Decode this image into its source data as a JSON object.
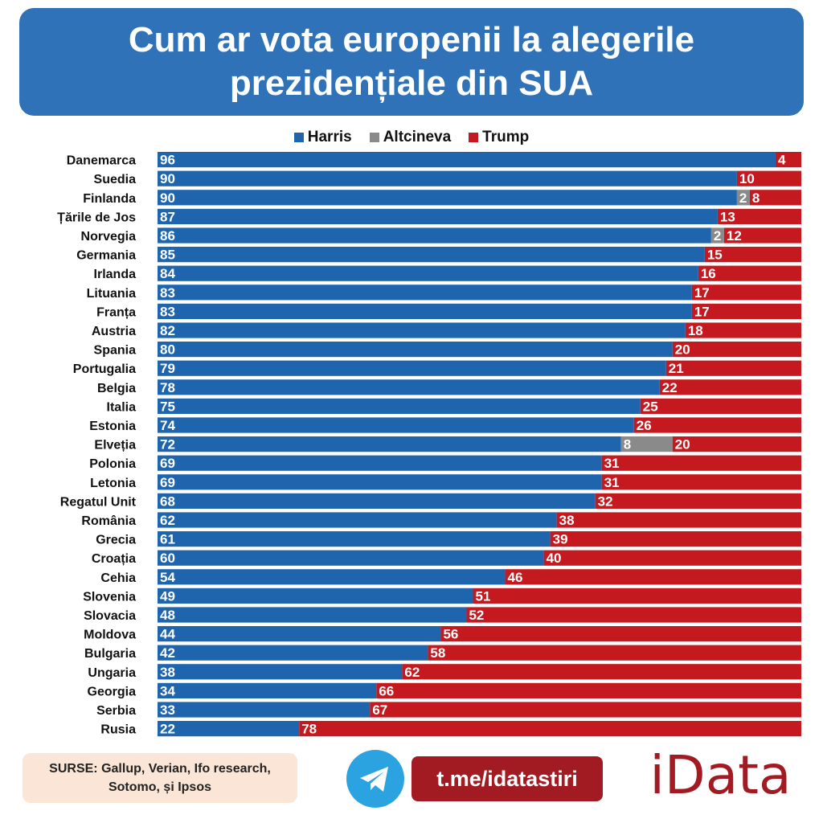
{
  "title": {
    "line1": "Cum ar vota europenii la alegerile",
    "line2": "prezidențiale din SUA"
  },
  "colors": {
    "title_bg": "#2f72b8",
    "harris": "#1f65ae",
    "other": "#8a8a8a",
    "trump": "#c41a1f",
    "link_bg": "#a21a22",
    "sources_bg": "#fbe5d6",
    "telegram": "#2ba3e0"
  },
  "legend": [
    {
      "label": "Harris",
      "color": "#1f65ae"
    },
    {
      "label": "Altcineva",
      "color": "#8a8a8a"
    },
    {
      "label": "Trump",
      "color": "#c41a1f"
    }
  ],
  "chart_data": {
    "type": "bar",
    "orientation": "horizontal",
    "stacked": true,
    "title": "Cum ar vota europenii la alegerile prezidențiale din SUA",
    "xlim": [
      0,
      100
    ],
    "grid": false,
    "legend_position": "top",
    "categories": [
      "Danemarca",
      "Suedia",
      "Finlanda",
      "Țările de Jos",
      "Norvegia",
      "Germania",
      "Irlanda",
      "Lituania",
      "Franța",
      "Austria",
      "Spania",
      "Portugalia",
      "Belgia",
      "Italia",
      "Estonia",
      "Elveția",
      "Polonia",
      "Letonia",
      "Regatul Unit",
      "România",
      "Grecia",
      "Croația",
      "Cehia",
      "Slovenia",
      "Slovacia",
      "Moldova",
      "Bulgaria",
      "Ungaria",
      "Georgia",
      "Serbia",
      "Rusia"
    ],
    "series": [
      {
        "name": "Harris",
        "values": [
          96,
          90,
          90,
          87,
          86,
          85,
          84,
          83,
          83,
          82,
          80,
          79,
          78,
          75,
          74,
          72,
          69,
          69,
          68,
          62,
          61,
          60,
          54,
          49,
          48,
          44,
          42,
          38,
          34,
          33,
          22
        ]
      },
      {
        "name": "Altcineva",
        "values": [
          0,
          0,
          2,
          0,
          2,
          0,
          0,
          0,
          0,
          0,
          0,
          0,
          0,
          0,
          0,
          8,
          0,
          0,
          0,
          0,
          0,
          0,
          0,
          0,
          0,
          0,
          0,
          0,
          0,
          0,
          0
        ]
      },
      {
        "name": "Trump",
        "values": [
          4,
          10,
          8,
          13,
          12,
          15,
          16,
          17,
          17,
          18,
          20,
          21,
          22,
          25,
          26,
          20,
          31,
          31,
          32,
          38,
          39,
          40,
          46,
          51,
          52,
          56,
          58,
          62,
          66,
          67,
          78
        ]
      }
    ]
  },
  "footer": {
    "sources_label": "SURSE:",
    "sources_line1": "Gallup, Verian, Ifo research,",
    "sources_line2": "Sotomo, și Ipsos",
    "telegram_link": "t.me/idatastiri",
    "brand": "iData",
    "telegram_icon": "telegram-icon"
  }
}
